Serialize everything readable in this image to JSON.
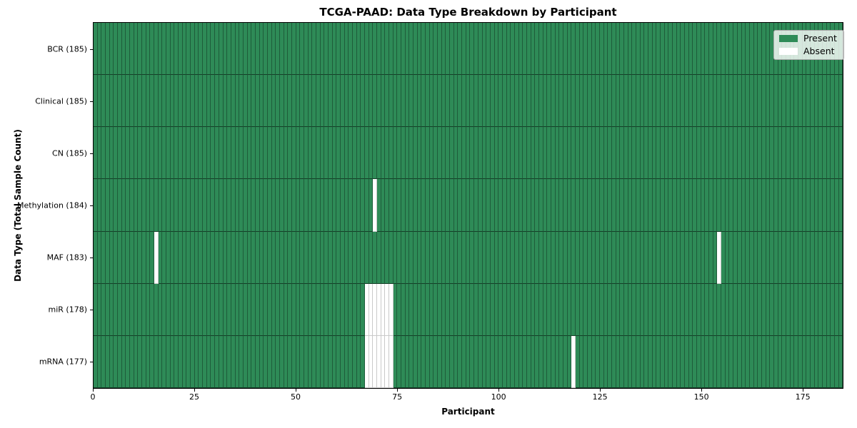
{
  "colors": {
    "present": "#2e8b57",
    "absent": "#ffffff",
    "present_edge": "#1e5c3a",
    "absent_edge": "#c9c9c9",
    "row_line": "rgba(0,0,0,0.55)"
  },
  "chart_data": {
    "type": "heatmap",
    "title": "TCGA-PAAD: Data Type Breakdown by Participant",
    "xlabel": "Participant",
    "ylabel": "Data Type (Total Sample Count)",
    "n_participants": 185,
    "xlim": [
      0,
      185
    ],
    "x_ticks": [
      0,
      25,
      50,
      75,
      100,
      125,
      150,
      175
    ],
    "grid": "cell-edges",
    "legend_position": "upper right",
    "legend_labels": [
      "Present",
      "Absent"
    ],
    "rows": [
      {
        "label": "BCR (185)",
        "data_type": "BCR",
        "total_samples": 185,
        "absent_participants": []
      },
      {
        "label": "Clinical (185)",
        "data_type": "Clinical",
        "total_samples": 185,
        "absent_participants": []
      },
      {
        "label": "CN (185)",
        "data_type": "CN",
        "total_samples": 185,
        "absent_participants": []
      },
      {
        "label": "Methylation (184)",
        "data_type": "Methylation",
        "total_samples": 184,
        "absent_participants": [
          69
        ]
      },
      {
        "label": "MAF (183)",
        "data_type": "MAF",
        "total_samples": 183,
        "absent_participants": [
          15,
          154
        ]
      },
      {
        "label": "miR (178)",
        "data_type": "miR",
        "total_samples": 178,
        "absent_participants": [
          67,
          68,
          69,
          70,
          71,
          72,
          73
        ]
      },
      {
        "label": "mRNA (177)",
        "data_type": "mRNA",
        "total_samples": 177,
        "absent_participants": [
          67,
          68,
          69,
          70,
          71,
          72,
          73,
          118
        ]
      }
    ]
  }
}
